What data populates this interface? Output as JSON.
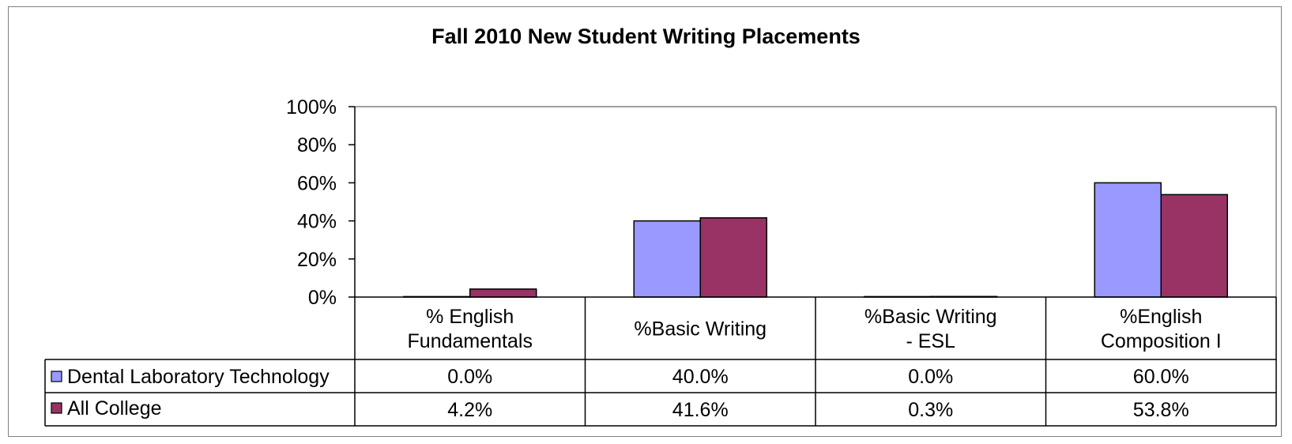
{
  "chart_data": {
    "type": "bar",
    "title": "Fall 2010 New Student Writing Placements",
    "categories": [
      [
        "% English",
        "Fundamentals"
      ],
      [
        "%Basic Writing"
      ],
      [
        "%Basic Writing",
        "- ESL"
      ],
      [
        "%English",
        "Composition I"
      ]
    ],
    "series": [
      {
        "name": "Dental Laboratory Technology",
        "color": "#9999ff",
        "values": [
          0.0,
          40.0,
          0.0,
          60.0
        ],
        "labels": [
          "0.0%",
          "40.0%",
          "0.0%",
          "60.0%"
        ]
      },
      {
        "name": "All College",
        "color": "#993366",
        "values": [
          4.2,
          41.6,
          0.3,
          53.8
        ],
        "labels": [
          "4.2%",
          "41.6%",
          "0.3%",
          "53.8%"
        ]
      }
    ],
    "ylim": [
      0,
      100
    ],
    "yticks": [
      "0%",
      "20%",
      "40%",
      "60%",
      "80%",
      "100%"
    ],
    "legend": "data-table",
    "grid": false
  }
}
